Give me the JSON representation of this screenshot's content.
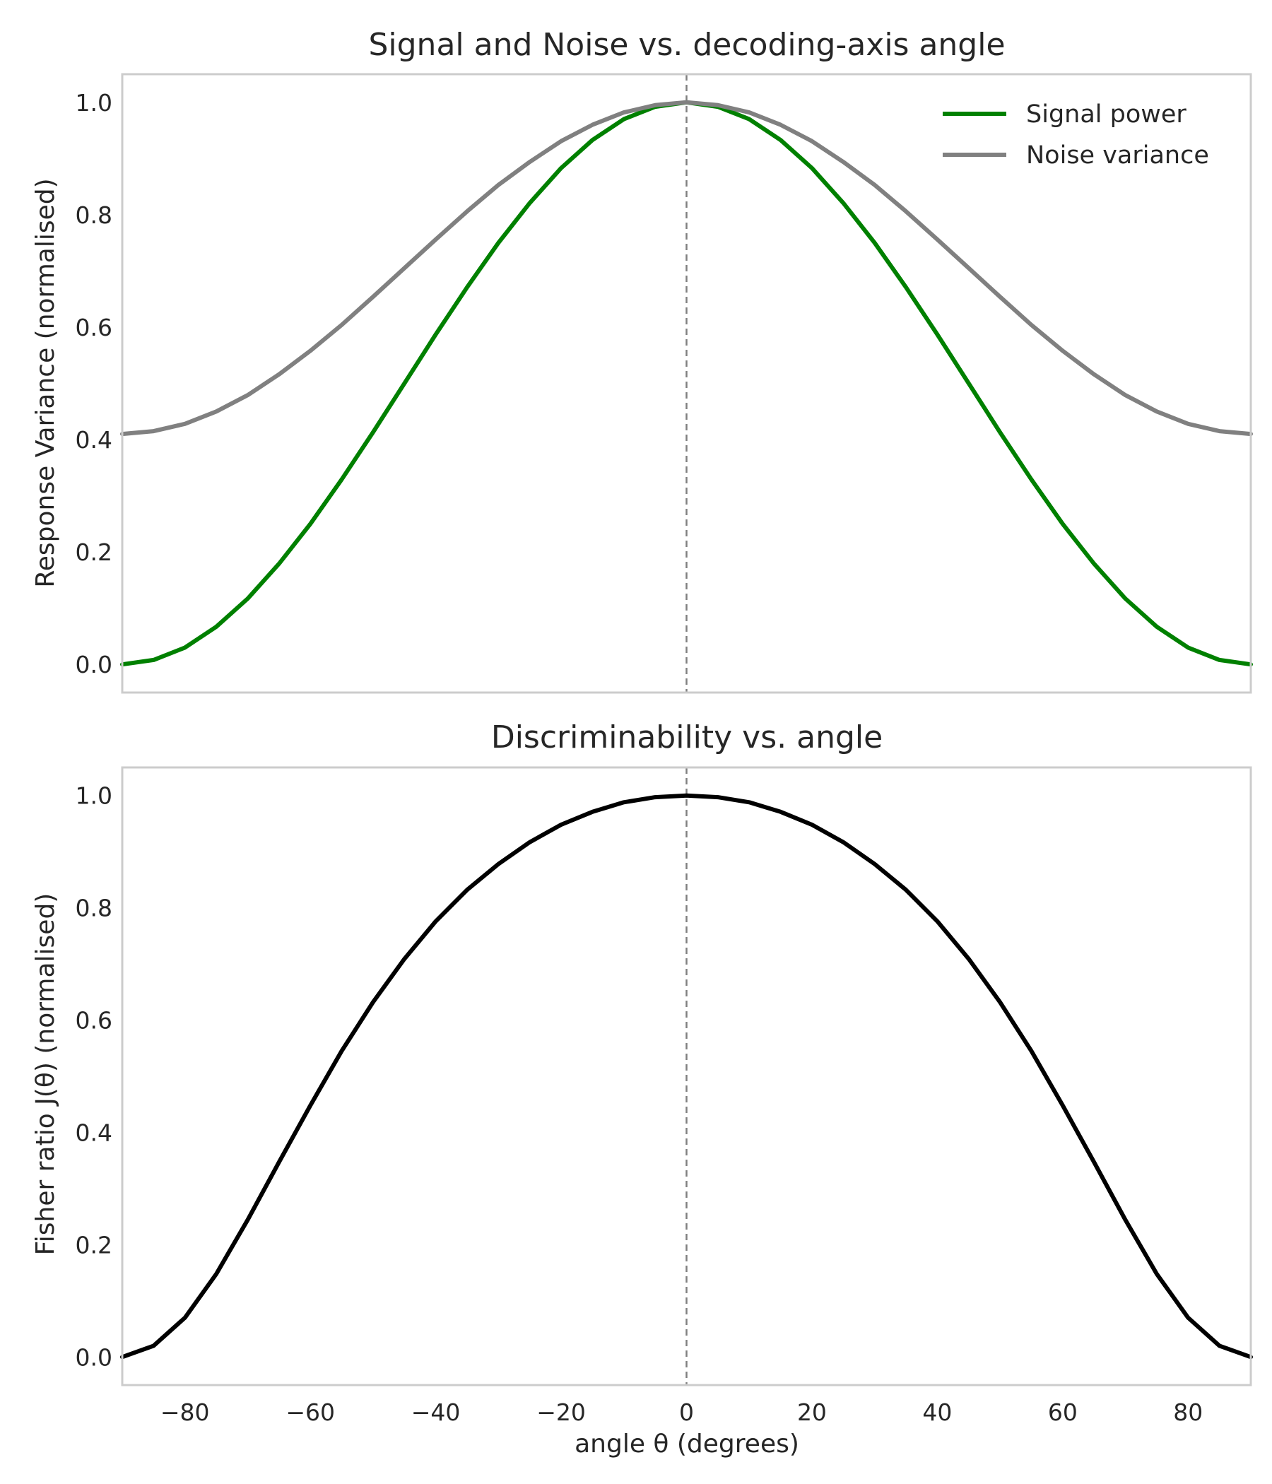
{
  "chart_data": [
    {
      "type": "line",
      "title": "Signal and Noise vs. decoding-axis angle",
      "xlabel": "",
      "ylabel": "Response Variance (normalised)",
      "xlim": [
        -90,
        90
      ],
      "ylim": [
        -0.05,
        1.05
      ],
      "yticks": [
        "0.0",
        "0.2",
        "0.4",
        "0.6",
        "0.8",
        "1.0"
      ],
      "xticks": [],
      "grid": false,
      "legend_position": "top-right",
      "vline_x": 0,
      "series": [
        {
          "name": "Signal power",
          "color": "#008000",
          "x": [
            -90,
            -85,
            -80,
            -75,
            -70,
            -65,
            -60,
            -55,
            -50,
            -45,
            -40,
            -35,
            -30,
            -25,
            -20,
            -15,
            -10,
            -5,
            0,
            5,
            10,
            15,
            20,
            25,
            30,
            35,
            40,
            45,
            50,
            55,
            60,
            65,
            70,
            75,
            80,
            85,
            90
          ],
          "y": [
            0.0,
            0.008,
            0.03,
            0.067,
            0.117,
            0.179,
            0.25,
            0.329,
            0.413,
            0.5,
            0.587,
            0.671,
            0.75,
            0.821,
            0.883,
            0.933,
            0.97,
            0.992,
            1.0,
            0.992,
            0.97,
            0.933,
            0.883,
            0.821,
            0.75,
            0.671,
            0.587,
            0.5,
            0.413,
            0.329,
            0.25,
            0.179,
            0.117,
            0.067,
            0.03,
            0.008,
            0.0
          ]
        },
        {
          "name": "Noise variance",
          "color": "#808080",
          "x": [
            -90,
            -85,
            -80,
            -75,
            -70,
            -65,
            -60,
            -55,
            -50,
            -45,
            -40,
            -35,
            -30,
            -25,
            -20,
            -15,
            -10,
            -5,
            0,
            5,
            10,
            15,
            20,
            25,
            30,
            35,
            40,
            45,
            50,
            55,
            60,
            65,
            70,
            75,
            80,
            85,
            90
          ],
          "y": [
            0.41,
            0.415,
            0.428,
            0.45,
            0.479,
            0.516,
            0.558,
            0.604,
            0.654,
            0.705,
            0.756,
            0.806,
            0.853,
            0.894,
            0.931,
            0.96,
            0.982,
            0.995,
            1.0,
            0.995,
            0.982,
            0.96,
            0.931,
            0.894,
            0.853,
            0.806,
            0.756,
            0.705,
            0.654,
            0.604,
            0.558,
            0.516,
            0.479,
            0.45,
            0.428,
            0.415,
            0.41
          ]
        }
      ]
    },
    {
      "type": "line",
      "title": "Discriminability vs. angle",
      "xlabel": "angle θ (degrees)",
      "ylabel": "Fisher ratio  J(θ)  (normalised)",
      "xlim": [
        -90,
        90
      ],
      "ylim": [
        -0.05,
        1.05
      ],
      "yticks": [
        "0.0",
        "0.2",
        "0.4",
        "0.6",
        "0.8",
        "1.0"
      ],
      "xticks": [
        "−80",
        "−60",
        "−40",
        "−20",
        "0",
        "20",
        "40",
        "60",
        "80"
      ],
      "xtick_values": [
        -80,
        -60,
        -40,
        -20,
        0,
        20,
        40,
        60,
        80
      ],
      "grid": false,
      "vline_x": 0,
      "series": [
        {
          "color": "#000000",
          "x": [
            -90,
            -85,
            -80,
            -75,
            -70,
            -65,
            -60,
            -55,
            -50,
            -45,
            -40,
            -35,
            -30,
            -25,
            -20,
            -15,
            -10,
            -5,
            0,
            5,
            10,
            15,
            20,
            25,
            30,
            35,
            40,
            45,
            50,
            55,
            60,
            65,
            70,
            75,
            80,
            85,
            90
          ],
          "y": [
            0.0,
            0.02,
            0.07,
            0.148,
            0.244,
            0.347,
            0.448,
            0.545,
            0.632,
            0.709,
            0.776,
            0.832,
            0.878,
            0.917,
            0.948,
            0.971,
            0.988,
            0.997,
            1.0,
            0.997,
            0.988,
            0.971,
            0.948,
            0.917,
            0.878,
            0.832,
            0.776,
            0.709,
            0.632,
            0.545,
            0.448,
            0.347,
            0.244,
            0.148,
            0.07,
            0.02,
            0.0
          ]
        }
      ]
    }
  ]
}
